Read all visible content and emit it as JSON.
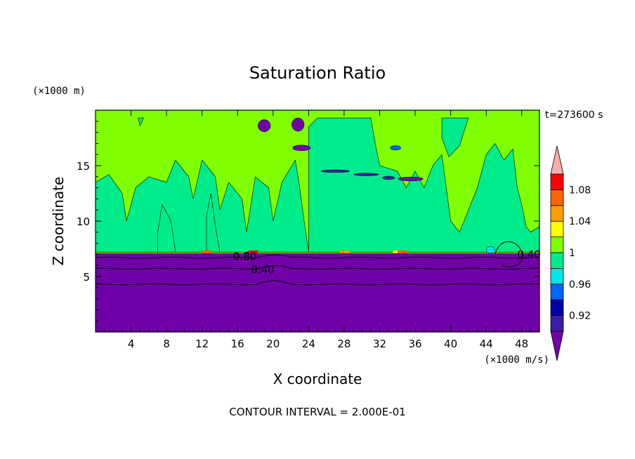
{
  "chart_data": {
    "type": "heatmap",
    "title": "Saturation Ratio",
    "xlabel": "X coordinate",
    "ylabel": "Z coordinate",
    "x_unit": "(×1000 m/s)",
    "y_unit": "(×1000 m)",
    "time_label": "t=273600 s",
    "footer": "CONTOUR INTERVAL = 2.000E-01",
    "xlim": [
      0,
      50
    ],
    "ylim": [
      0,
      20
    ],
    "x_ticks": [
      4,
      8,
      12,
      16,
      20,
      24,
      28,
      32,
      36,
      40,
      44,
      48
    ],
    "y_ticks": [
      5,
      10,
      15
    ],
    "colorbar": {
      "levels": [
        0.9,
        0.92,
        0.94,
        0.96,
        0.98,
        1.0,
        1.02,
        1.04,
        1.06,
        1.08,
        1.1
      ],
      "tick_labels": [
        "0.92",
        "0.96",
        "1",
        "1.04",
        "1.08"
      ],
      "tick_values": [
        0.92,
        0.96,
        1.0,
        1.04,
        1.08
      ],
      "colors": {
        "under": "#7000a8",
        "bands": [
          "#3a1ea8",
          "#0000aa",
          "#0064ff",
          "#00e6e6",
          "#00eb8a",
          "#80ff00",
          "#ffff00",
          "#ffa000",
          "#ff6400",
          "#ff0000"
        ],
        "over": "#ffaaaa"
      }
    },
    "regions": {
      "dry_layer_top": 7.1,
      "moist_background": "#80ff00",
      "cloud_band": "#00eb8a",
      "dry_color": "#7000a8"
    },
    "contours": [
      {
        "level": "0.80",
        "z": 6.7
      },
      {
        "level": "0.40",
        "z": 5.7
      },
      {
        "level": "",
        "z": 4.3
      }
    ],
    "contour_labels": [
      {
        "text": "0.80",
        "x": 15.5,
        "z": 6.8
      },
      {
        "text": "0.40",
        "x": 17.5,
        "z": 5.6
      },
      {
        "text": "0.40",
        "x": 47.5,
        "z": 7.0
      }
    ]
  }
}
